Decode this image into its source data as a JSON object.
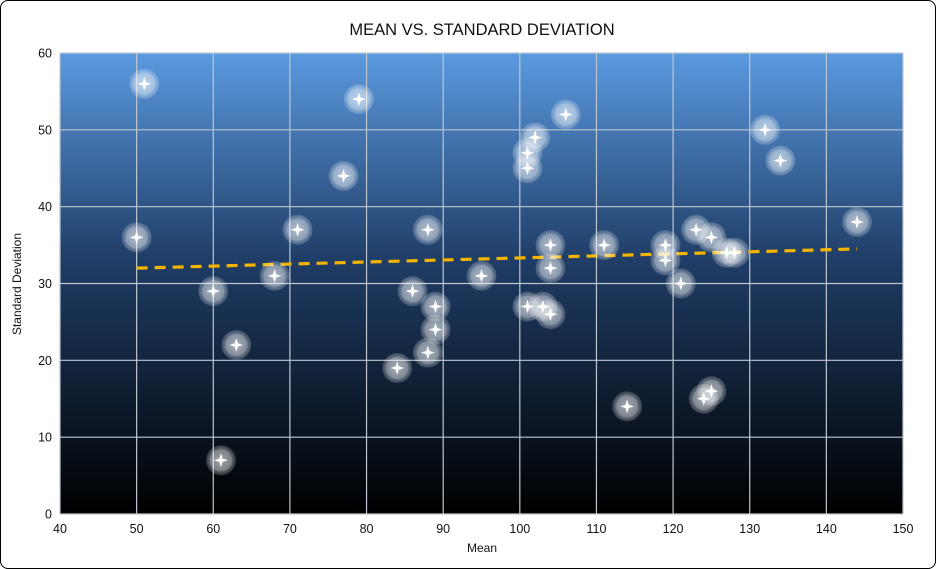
{
  "chart_data": {
    "type": "scatter",
    "title": "MEAN VS. STANDARD DEVIATION",
    "xlabel": "Mean",
    "ylabel": "Standard Deviation",
    "xlim": [
      40,
      150
    ],
    "ylim": [
      0,
      60
    ],
    "xticks": [
      40,
      50,
      60,
      70,
      80,
      90,
      100,
      110,
      120,
      130,
      140,
      150
    ],
    "yticks": [
      0,
      10,
      20,
      30,
      40,
      50,
      60
    ],
    "grid": true,
    "legend": "none",
    "colors": {
      "background_top": "#5b9ae0",
      "background_bottom": "#000000",
      "grid": "#bfc6cf",
      "point": "#ffffff",
      "trendline": "#f5b400"
    },
    "points": [
      {
        "x": 51,
        "y": 56
      },
      {
        "x": 50,
        "y": 36
      },
      {
        "x": 60,
        "y": 29
      },
      {
        "x": 61,
        "y": 7
      },
      {
        "x": 63,
        "y": 22
      },
      {
        "x": 68,
        "y": 31
      },
      {
        "x": 71,
        "y": 37
      },
      {
        "x": 77,
        "y": 44
      },
      {
        "x": 79,
        "y": 54
      },
      {
        "x": 84,
        "y": 19
      },
      {
        "x": 86,
        "y": 29
      },
      {
        "x": 88,
        "y": 37
      },
      {
        "x": 88,
        "y": 21
      },
      {
        "x": 89,
        "y": 27
      },
      {
        "x": 89,
        "y": 24
      },
      {
        "x": 95,
        "y": 31
      },
      {
        "x": 101,
        "y": 47
      },
      {
        "x": 101,
        "y": 45
      },
      {
        "x": 102,
        "y": 49
      },
      {
        "x": 106,
        "y": 52
      },
      {
        "x": 101,
        "y": 27
      },
      {
        "x": 103,
        "y": 27
      },
      {
        "x": 104,
        "y": 26
      },
      {
        "x": 104,
        "y": 35
      },
      {
        "x": 104,
        "y": 32
      },
      {
        "x": 111,
        "y": 35
      },
      {
        "x": 114,
        "y": 14
      },
      {
        "x": 119,
        "y": 35
      },
      {
        "x": 119,
        "y": 33
      },
      {
        "x": 121,
        "y": 30
      },
      {
        "x": 123,
        "y": 37
      },
      {
        "x": 125,
        "y": 36
      },
      {
        "x": 127,
        "y": 34
      },
      {
        "x": 128,
        "y": 34
      },
      {
        "x": 124,
        "y": 15
      },
      {
        "x": 125,
        "y": 16
      },
      {
        "x": 132,
        "y": 50
      },
      {
        "x": 134,
        "y": 46
      },
      {
        "x": 144,
        "y": 38
      }
    ],
    "trendline": {
      "x": [
        50,
        144
      ],
      "y": [
        32,
        34.5
      ]
    }
  }
}
